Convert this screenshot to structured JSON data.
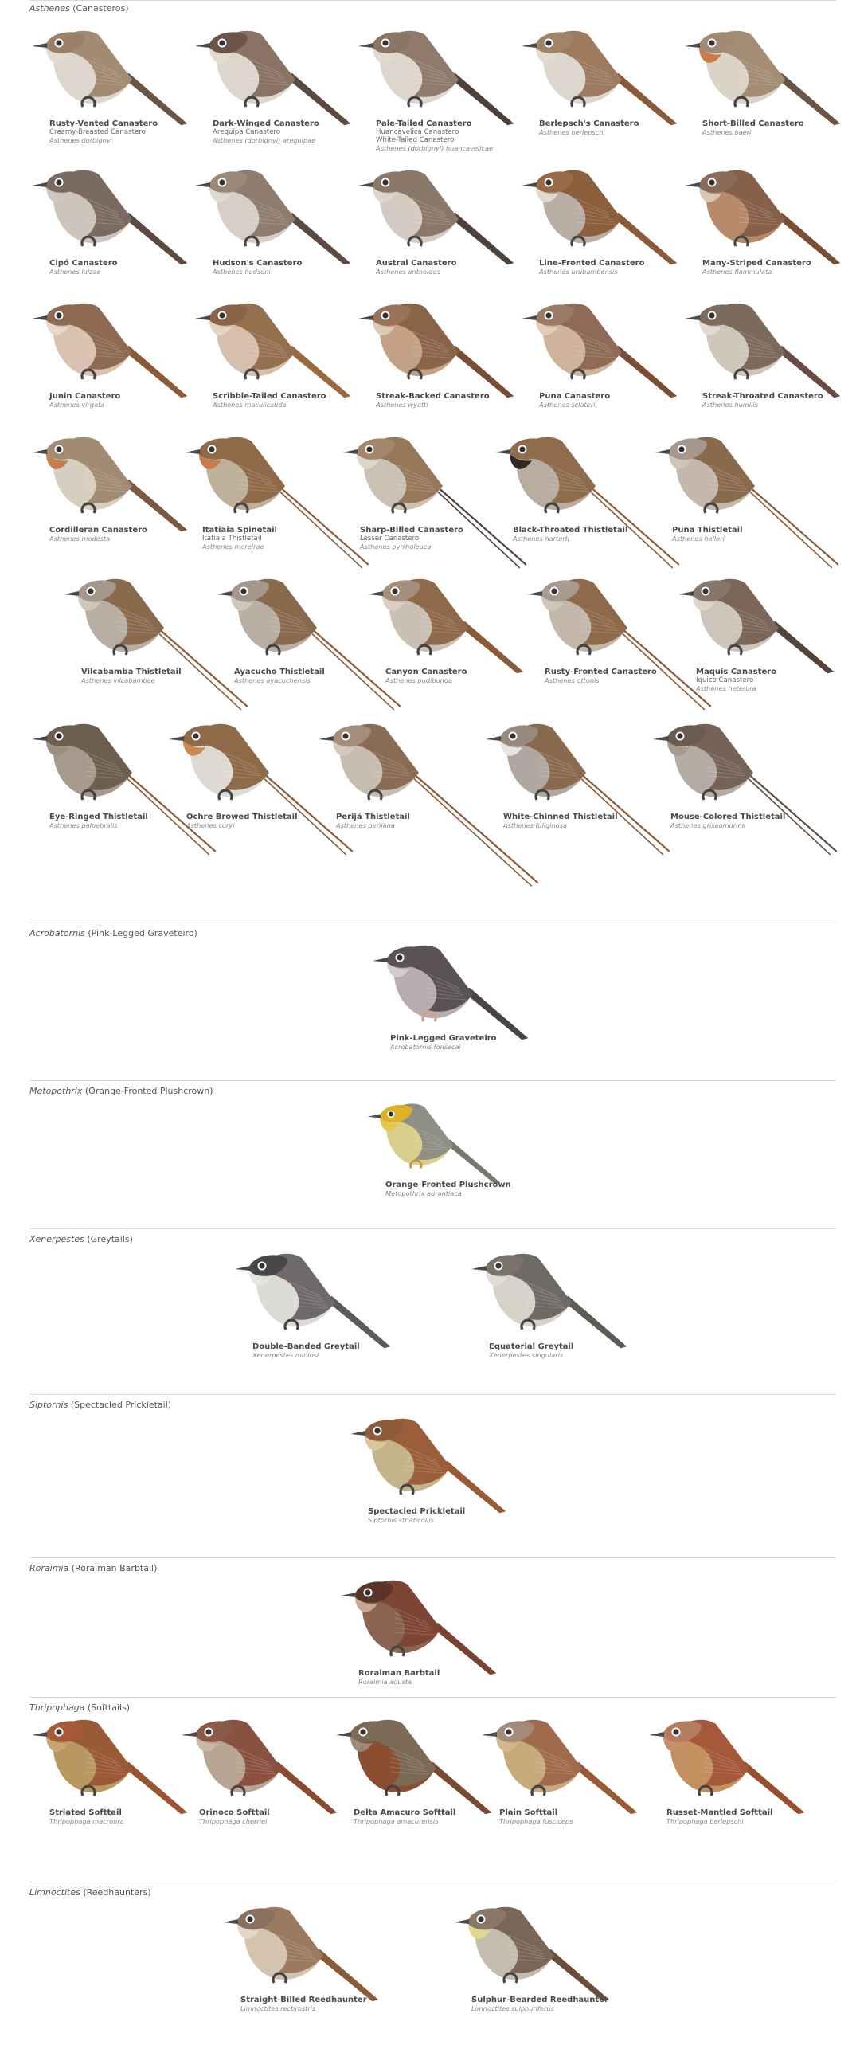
{
  "sections": [
    {
      "genus": "Asthenes",
      "common": "(Canasteros)",
      "rows": [
        [
          {
            "name": "Rusty-Vented Canastero",
            "alt": [
              "Creamy-Breasted Canastero"
            ],
            "sci": "Asthenes dorbignyi",
            "body": "#a38a72",
            "belly": "#ddd6cc",
            "tail": "#6a5446",
            "head": "#9b8068",
            "throat": "#e2dbd1",
            "eye": "#333"
          },
          {
            "name": "Dark-Winged Canastero",
            "alt": [
              "Arequipa Canastero"
            ],
            "sci": "Asthenes (dorbignyi) arequipae",
            "body": "#8a7264",
            "belly": "#ddd6cc",
            "tail": "#5c4940",
            "head": "#6e5448",
            "throat": "#e2dbd1",
            "eye": "#333"
          },
          {
            "name": "Pale-Tailed Canastero",
            "alt": [
              "Huancavelica Canastero",
              "White-Tailed Canastero"
            ],
            "sci": "Asthenes (dorbignyi) huancavelicae",
            "body": "#8f7a6c",
            "belly": "#ddd6cc",
            "tail": "#4e4038",
            "head": "#8a7464",
            "throat": "#e2dbd1",
            "eye": "#333"
          },
          {
            "name": "Berlepsch's Canastero",
            "alt": [],
            "sci": "Asthenes berlepschi",
            "body": "#9e7a5e",
            "belly": "#ddd6cc",
            "tail": "#8b5a36",
            "head": "#a08468",
            "throat": "#e2dbd1",
            "eye": "#333"
          },
          {
            "name": "Short-Billed Canastero",
            "alt": [],
            "sci": "Asthenes baeri",
            "body": "#a58c74",
            "belly": "#d9d3c8",
            "tail": "#6a5446",
            "head": "#a38a72",
            "throat": "#c97c4a",
            "eye": "#333"
          }
        ],
        [
          {
            "name": "Cipó Canastero",
            "alt": [],
            "sci": "Asthenes luizae",
            "body": "#7b6a60",
            "belly": "#ccc3bb",
            "tail": "#5a4a42",
            "head": "#7b6a60",
            "throat": "#cfc7bf",
            "eye": "#333"
          },
          {
            "name": "Hudson's Canastero",
            "alt": [],
            "sci": "Asthenes hudsoni",
            "body": "#8e7c6e",
            "belly": "#d7cfc5",
            "tail": "#5a4a42",
            "head": "#9a8878",
            "throat": "#e0d9cf",
            "eye": "#333"
          },
          {
            "name": "Austral Canastero",
            "alt": [],
            "sci": "Asthenes anthoides",
            "body": "#8a7868",
            "belly": "#d3cbc1",
            "tail": "#4e423a",
            "head": "#8a7868",
            "throat": "#ddd6cc",
            "eye": "#333"
          },
          {
            "name": "Line-Fronted Canastero",
            "alt": [],
            "sci": "Asthenes urubambensis",
            "body": "#8b5e3c",
            "belly": "#b8aea4",
            "tail": "#8b5a36",
            "head": "#9a6a46",
            "throat": "#e0d9cf",
            "eye": "#333"
          },
          {
            "name": "Many-Striped Canastero",
            "alt": [],
            "sci": "Asthenes flammulata",
            "body": "#87604a",
            "belly": "#b78a6a",
            "tail": "#7a4e34",
            "head": "#8a6a58",
            "throat": "#d9c7b4",
            "eye": "#333"
          }
        ],
        [
          {
            "name": "Junin Canastero",
            "alt": [],
            "sci": "Asthenes virgata",
            "body": "#8f6a52",
            "belly": "#d9c2b2",
            "tail": "#8b5a36",
            "head": "#8f6a52",
            "throat": "#e8d8c8",
            "eye": "#333"
          },
          {
            "name": "Scribble-Tailed Canastero",
            "alt": [],
            "sci": "Asthenes maculicauda",
            "body": "#94704e",
            "belly": "#d6bfac",
            "tail": "#9a6a3e",
            "head": "#8a6248",
            "throat": "#e6d4c2",
            "eye": "#333"
          },
          {
            "name": "Streak-Backed Canastero",
            "alt": [],
            "sci": "Asthenes wyatti",
            "body": "#8a6448",
            "belly": "#c4a184",
            "tail": "#7a4e34",
            "head": "#9a7256",
            "throat": "#dcc9b6",
            "eye": "#333"
          },
          {
            "name": "Puna Canastero",
            "alt": [],
            "sci": "Asthenes sclateri",
            "body": "#8f6a56",
            "belly": "#cfb39a",
            "tail": "#7a4e34",
            "head": "#9b7b66",
            "throat": "#e0cdb9",
            "eye": "#333"
          },
          {
            "name": "Streak-Throated Canastero",
            "alt": [],
            "sci": "Asthenes humilis",
            "body": "#7c6a5c",
            "belly": "#cfc6bc",
            "tail": "#6a4a44",
            "head": "#7c6a5c",
            "throat": "#e3dbd2",
            "eye": "#333"
          }
        ],
        [
          {
            "name": "Cordilleran Canastero",
            "alt": [],
            "sci": "Asthenes modesta",
            "body": "#a18b72",
            "belly": "#d6cebf",
            "tail": "#7a5a40",
            "head": "#a18b72",
            "throat": "#c97c4a",
            "eye": "#333"
          },
          {
            "name": "Itatiaia Spinetail",
            "alt": [
              "Itatiaia Thistletail"
            ],
            "sci": "Asthenes moreirae",
            "body": "#8e6a48",
            "belly": "#bfb09a",
            "tail": "#8b5a36",
            "head": "#8e6a48",
            "throat": "#c97c4a",
            "eye": "#333",
            "long": true
          },
          {
            "name": "Sharp-Billed Canastero",
            "alt": [
              "Lesser Canastero"
            ],
            "sci": "Asthenes pyrrholeuca",
            "body": "#98785a",
            "belly": "#cbc1b3",
            "tail": "#4e403a",
            "head": "#a4876a",
            "throat": "#ddd5c9",
            "eye": "#333",
            "long": true
          },
          {
            "name": "Black-Throated Thistletail",
            "alt": [],
            "sci": "Asthenes harterti",
            "body": "#8e6c4c",
            "belly": "#b8ad9f",
            "tail": "#8b5a36",
            "head": "#8e6c4c",
            "throat": "#2e2a28",
            "eye": "#333",
            "long": true
          },
          {
            "name": "Puna Thistletail",
            "alt": [],
            "sci": "Asthenes helleri",
            "body": "#8a6a4c",
            "belly": "#c3b8ab",
            "tail": "#8b5a36",
            "head": "#a5978a",
            "throat": "#cfc6bb",
            "eye": "#333",
            "long": true
          }
        ],
        [
          {
            "name": "Vilcabamba Thistletail",
            "alt": [],
            "sci": "Asthenes vilcabambae",
            "body": "#8a6a4c",
            "belly": "#b9aea2",
            "tail": "#8b5a36",
            "head": "#a5978a",
            "throat": "#cfc6bb",
            "eye": "#333",
            "long": true
          },
          {
            "name": "Ayacucho Thistletail",
            "alt": [],
            "sci": "Asthenes ayacuchensis",
            "body": "#8a6a4c",
            "belly": "#b9aea2",
            "tail": "#8b5a36",
            "head": "#a5978a",
            "throat": "#cfc6bb",
            "eye": "#333",
            "long": true
          },
          {
            "name": "Canyon Canastero",
            "alt": [],
            "sci": "Asthenes pudibunda",
            "body": "#8e6a4a",
            "belly": "#c9bfb2",
            "tail": "#8b5a36",
            "head": "#a48e7a",
            "throat": "#d8cfc3",
            "eye": "#333"
          },
          {
            "name": "Rusty-Fronted Canastero",
            "alt": [],
            "sci": "Asthenes ottonis",
            "body": "#8e6a4a",
            "belly": "#c2b7aa",
            "tail": "#8b5a36",
            "head": "#a89a8c",
            "throat": "#d0c7bc",
            "eye": "#333",
            "long": true
          },
          {
            "name": "Maquis Canastero",
            "alt": [
              "Iquico Canastero"
            ],
            "sci": "Asthenes heterura",
            "body": "#7b6658",
            "belly": "#cdc4ba",
            "tail": "#55433a",
            "head": "#87766a",
            "throat": "#ddd6cc",
            "eye": "#333"
          }
        ],
        [
          {
            "name": "Eye-Ringed Thistletail",
            "alt": [],
            "sci": "Asthenes palpebralis",
            "body": "#6e5e4e",
            "belly": "#a79a8c",
            "tail": "#8b5a36",
            "head": "#6e5e4e",
            "throat": "#9c8f82",
            "eye": "#222",
            "long": true
          },
          {
            "name": "Ochre Browed Thistletail",
            "alt": [],
            "sci": "Asthenes coryi",
            "body": "#8e6a48",
            "belly": "#dedad3",
            "tail": "#8b5a36",
            "head": "#8e6a48",
            "throat": "#c98a52",
            "eye": "#333",
            "long": true
          },
          {
            "name": "Perijá Thistletail",
            "alt": [],
            "sci": "Asthenes perijana",
            "body": "#8a6c54",
            "belly": "#c6bcb0",
            "tail": "#8b5a36",
            "head": "#a48e7a",
            "throat": "#d2c8bc",
            "eye": "#333",
            "long": true,
            "xlong": true
          },
          {
            "name": "White-Chinned Thistletail",
            "alt": [],
            "sci": "Asthenes fuliginosa",
            "body": "#8a6a4c",
            "belly": "#b0a89e",
            "tail": "#8b5a36",
            "head": "#9a8a7e",
            "throat": "#e8e4df",
            "eye": "#333",
            "long": true
          },
          {
            "name": "Mouse-Colored Thistletail",
            "alt": [],
            "sci": "Asthenes griseomurina",
            "body": "#756358",
            "belly": "#b4aba2",
            "tail": "#5e4e46",
            "head": "#6a5a50",
            "throat": "#a59a90",
            "eye": "#333",
            "long": true
          }
        ]
      ]
    },
    {
      "genus": "Acrobatornis",
      "common": "(Pink-Legged Graveteiro)",
      "rows": [
        [
          {
            "name": "Pink-Legged Graveteiro",
            "alt": [],
            "sci": "Acrobatornis fonsecai",
            "body": "#5a5257",
            "belly": "#b8acae",
            "tail": "#4a4448",
            "head": "#5a5257",
            "throat": "#d6ccce",
            "eye": "#333",
            "leg": "#d0a090"
          }
        ]
      ]
    },
    {
      "genus": "Metopothrix",
      "common": "(Orange-Fronted Plushcrown)",
      "rows": [
        [
          {
            "name": "Orange-Fronted Plushcrown",
            "alt": [],
            "sci": "Metopothrix aurantiaca",
            "body": "#8f8f86",
            "belly": "#d8cf8c",
            "tail": "#77776e",
            "head": "#e0b028",
            "throat": "#e3c84a",
            "eye": "#333",
            "small": true,
            "leg": "#c9953e"
          }
        ]
      ]
    },
    {
      "genus": "Xenerpestes",
      "common": "(Greytails)",
      "rows": [
        [
          {
            "name": "Double-Banded Greytail",
            "alt": [],
            "sci": "Xenerpestes minlosi",
            "body": "#6e6a6c",
            "belly": "#dcdad4",
            "tail": "#5e5a5c",
            "head": "#4a4648",
            "throat": "#e6e4df",
            "eye": "#333"
          },
          {
            "name": "Equatorial Greytail",
            "alt": [],
            "sci": "Xenerpestes singularis",
            "body": "#6e6a66",
            "belly": "#d6d2c8",
            "tail": "#5e5a56",
            "head": "#7a7268",
            "throat": "#e2ded6",
            "eye": "#333"
          }
        ]
      ]
    },
    {
      "genus": "Siptornis",
      "common": "(Spectacled Prickletail)",
      "rows": [
        [
          {
            "name": "Spectacled Prickletail",
            "alt": [],
            "sci": "Siptornis striaticollis",
            "body": "#9a5e3a",
            "belly": "#c4b48c",
            "tail": "#9a5a36",
            "head": "#8e5a3a",
            "throat": "#d8c79a",
            "eye": "#333"
          }
        ]
      ]
    },
    {
      "genus": "Roraimia",
      "common": "(Roraiman Barbtail)",
      "rows": [
        [
          {
            "name": "Roraiman Barbtail",
            "alt": [],
            "sci": "Roraimia adusta",
            "body": "#7e4434",
            "belly": "#8a6450",
            "tail": "#7a4230",
            "head": "#5a3426",
            "throat": "#c6a890",
            "eye": "#333"
          }
        ]
      ]
    },
    {
      "genus": "Thripophaga",
      "common": "(Softtails)",
      "rows": [
        [
          {
            "name": "Striated Softtail",
            "alt": [],
            "sci": "Thripophaga macroura",
            "body": "#9a5a38",
            "belly": "#b89860",
            "tail": "#9a5432",
            "head": "#a45a36",
            "throat": "#c6a570",
            "eye": "#333"
          },
          {
            "name": "Orinoco Softtail",
            "alt": [],
            "sci": "Thripophaga cherriei",
            "body": "#8a5040",
            "belly": "#b8a492",
            "tail": "#8a4a30",
            "head": "#8a5a48",
            "throat": "#c9b8a6",
            "eye": "#333"
          },
          {
            "name": "Delta Amacuro Softtail",
            "alt": [],
            "sci": "Thripophaga amacurensis",
            "body": "#7a6a56",
            "belly": "#8c4e30",
            "tail": "#7a4a30",
            "head": "#7a6a56",
            "throat": "#9a8a76",
            "eye": "#333"
          },
          {
            "name": "Plain Softtail",
            "alt": [],
            "sci": "Thripophaga fusciceps",
            "body": "#a06a4c",
            "belly": "#c6aa7c",
            "tail": "#9a5a36",
            "head": "#a48a78",
            "throat": "#d0b88c",
            "eye": "#333"
          },
          {
            "name": "Russet-Mantled Softtail",
            "alt": [],
            "sci": "Thripophaga berlepschi",
            "body": "#a6583a",
            "belly": "#c49060",
            "tail": "#9a4e30",
            "head": "#b47c60",
            "throat": "#c8906a",
            "eye": "#333"
          }
        ]
      ]
    },
    {
      "genus": "Limnoctites",
      "common": "(Reedhaunters)",
      "rows": [
        [
          {
            "name": "Straight-Billed Reedhaunter",
            "alt": [],
            "sci": "Limnoctites rectirostris",
            "body": "#9c7a60",
            "belly": "#d4c3ae",
            "tail": "#8b5a36",
            "head": "#8a7060",
            "throat": "#e2d6c6",
            "eye": "#333"
          },
          {
            "name": "Sulphur-Bearded Reedhaunter",
            "alt": [],
            "sci": "Limnoctites sulphuriferus",
            "body": "#7a6656",
            "belly": "#c4bcae",
            "tail": "#6a4e3a",
            "head": "#8a7866",
            "throat": "#e4d890",
            "eye": "#333"
          }
        ]
      ]
    }
  ]
}
